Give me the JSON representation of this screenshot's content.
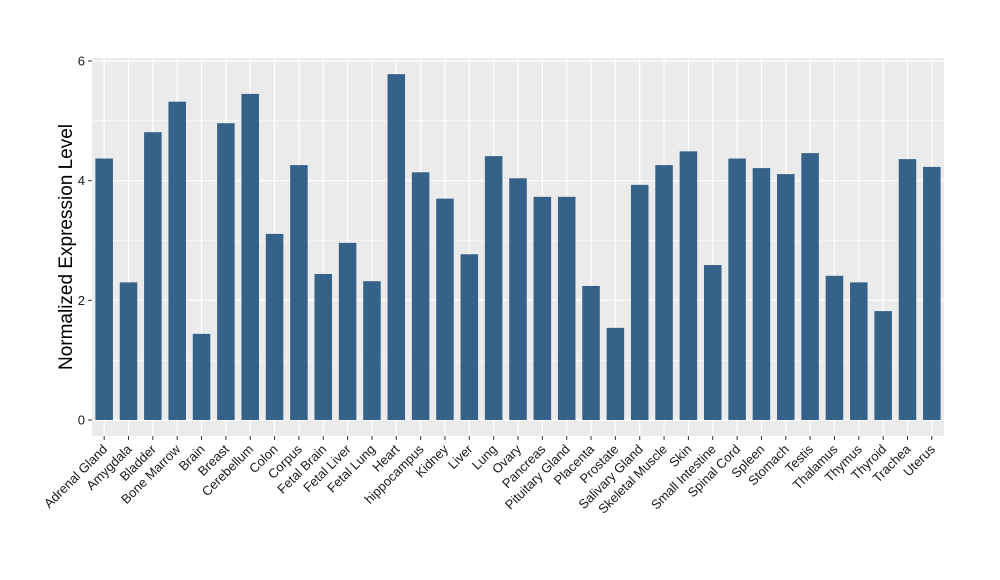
{
  "chart_data": {
    "type": "bar",
    "ylabel": "Normalized Expression Level",
    "xlabel": "",
    "ylim": [
      0,
      6.2
    ],
    "yticks": [
      0,
      2,
      4,
      6
    ],
    "grid": true,
    "categories": [
      "Adrenal Gland",
      "Amygdala",
      "Bladder",
      "Bone Marrow",
      "Brain",
      "Breast",
      "Cerebellum",
      "Colon",
      "Corpus",
      "Fetal Brain",
      "Fetal Liver",
      "Fetal Lung",
      "Heart",
      "hippocampus",
      "Kidney",
      "Liver",
      "Lung",
      "Ovary",
      "Pancreas",
      "Pituitary Gland",
      "Placenta",
      "Prostate",
      "Salivary Gland",
      "Skeletal Muscle",
      "Skin",
      "Small Intestine",
      "Spinal Cord",
      "Spleen",
      "Stomach",
      "Testis",
      "Thalamus",
      "Thymus",
      "Thyroid",
      "Trachea",
      "Uterus"
    ],
    "values": [
      4.37,
      2.3,
      4.81,
      5.32,
      1.44,
      4.96,
      5.45,
      3.11,
      4.26,
      2.44,
      2.96,
      2.32,
      5.78,
      4.14,
      3.7,
      2.77,
      4.41,
      4.04,
      3.73,
      3.73,
      2.24,
      1.54,
      3.93,
      4.26,
      4.49,
      2.59,
      4.37,
      4.21,
      4.11,
      4.46,
      2.41,
      2.3,
      1.82,
      4.36,
      4.23
    ],
    "colors": {
      "bar": "#366289",
      "panel": "#ebebeb",
      "grid": "#ffffff",
      "axis_text": "#1a1a1a",
      "tick": "#333333"
    }
  }
}
